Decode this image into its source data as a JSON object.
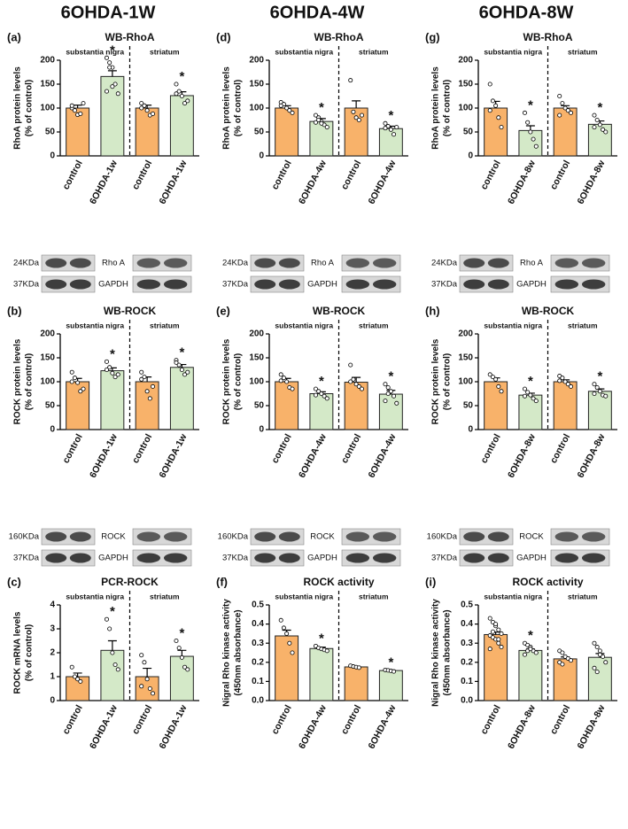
{
  "columns": [
    "6OHDA-1W",
    "6OHDA-4W",
    "6OHDA-8W"
  ],
  "chart_data": [
    {
      "type": "bar",
      "panel": "(a)",
      "title": "WB-RhoA",
      "ylabel": [
        "RhoA protein levels",
        "(% of control)"
      ],
      "groups": [
        "substantia nigra",
        "striatum"
      ],
      "categories": [
        "control",
        "6OHDA-1w",
        "control",
        "6OHDA-1w"
      ],
      "colors": [
        "#f8b26a",
        "#d4e9c8"
      ],
      "ylim": [
        0,
        200
      ],
      "yticks": [
        0,
        50,
        100,
        150,
        200
      ],
      "values": [
        100,
        166,
        100,
        126
      ],
      "errors": [
        6,
        12,
        6,
        8
      ],
      "points": [
        [
          100,
          95,
          86,
          88,
          110,
          105
        ],
        [
          205,
          195,
          185,
          150,
          130,
          135,
          185,
          145
        ],
        [
          110,
          105,
          95,
          85,
          88,
          100
        ],
        [
          150,
          135,
          125,
          110,
          115,
          130
        ]
      ],
      "annotations": [
        {
          "index": 1,
          "text": "*"
        },
        {
          "index": 3,
          "text": "*"
        }
      ]
    },
    {
      "type": "bar",
      "panel": "(b)",
      "title": "WB-ROCK",
      "ylabel": [
        "ROCK protein levels",
        "(% of control)"
      ],
      "groups": [
        "substantia nigra",
        "striatum"
      ],
      "categories": [
        "control",
        "6OHDA-1w",
        "control",
        "6OHDA-1w"
      ],
      "colors": [
        "#f8b26a",
        "#d4e9c8"
      ],
      "ylim": [
        0,
        200
      ],
      "yticks": [
        0,
        50,
        100,
        150,
        200
      ],
      "values": [
        100,
        123,
        100,
        130
      ],
      "errors": [
        7,
        6,
        10,
        6
      ],
      "points": [
        [
          120,
          108,
          98,
          80,
          85,
          100
        ],
        [
          142,
          130,
          118,
          110,
          115,
          125
        ],
        [
          120,
          110,
          80,
          65,
          90,
          105
        ],
        [
          145,
          135,
          125,
          115,
          120,
          140
        ]
      ],
      "annotations": [
        {
          "index": 1,
          "text": "*"
        },
        {
          "index": 3,
          "text": "*"
        }
      ]
    },
    {
      "type": "bar",
      "panel": "(c)",
      "title": "PCR-ROCK",
      "ylabel": [
        "ROCK mRNA levels",
        "(% of control)"
      ],
      "groups": [
        "substantia nigra",
        "striatum"
      ],
      "categories": [
        "control",
        "6OHDA-1w",
        "control",
        "6OHDA-1w"
      ],
      "colors": [
        "#f8b26a",
        "#d4e9c8"
      ],
      "ylim": [
        0,
        4
      ],
      "yticks": [
        0,
        1,
        2,
        3,
        4
      ],
      "values": [
        1,
        2.1,
        1,
        1.85
      ],
      "errors": [
        0.15,
        0.4,
        0.35,
        0.25
      ],
      "points": [
        [
          1.4,
          1,
          0.9,
          0.8
        ],
        [
          3.4,
          3,
          2,
          1.5,
          1.3
        ],
        [
          1.9,
          1.6,
          0.9,
          0.5,
          0.3,
          0.6
        ],
        [
          2.5,
          2.2,
          1.8,
          1.4,
          1.3
        ]
      ],
      "annotations": [
        {
          "index": 1,
          "text": "*"
        },
        {
          "index": 3,
          "text": "*"
        }
      ]
    },
    {
      "type": "bar",
      "panel": "(d)",
      "title": "WB-RhoA",
      "ylabel": [
        "RhoA protein levels",
        "(% of control)"
      ],
      "groups": [
        "substantia nigra",
        "striatum"
      ],
      "categories": [
        "control",
        "6OHDA-4w",
        "control",
        "6OHDA-4w"
      ],
      "colors": [
        "#f8b26a",
        "#d4e9c8"
      ],
      "ylim": [
        0,
        200
      ],
      "yticks": [
        0,
        50,
        100,
        150,
        200
      ],
      "values": [
        100,
        72,
        100,
        57
      ],
      "errors": [
        5,
        6,
        15,
        5
      ],
      "points": [
        [
          112,
          108,
          100,
          95,
          90,
          105
        ],
        [
          85,
          80,
          72,
          65,
          60,
          70,
          75,
          68
        ],
        [
          158,
          92,
          80,
          75,
          85
        ],
        [
          68,
          62,
          55,
          45,
          60,
          58
        ]
      ],
      "annotations": [
        {
          "index": 1,
          "text": "*"
        },
        {
          "index": 3,
          "text": "*"
        }
      ]
    },
    {
      "type": "bar",
      "panel": "(e)",
      "title": "WB-ROCK",
      "ylabel": [
        "ROCK protein levels",
        "(% of control)"
      ],
      "groups": [
        "substantia nigra",
        "striatum"
      ],
      "categories": [
        "control",
        "6OHDA-4w",
        "control",
        "6OHDA-4w"
      ],
      "colors": [
        "#f8b26a",
        "#d4e9c8"
      ],
      "ylim": [
        0,
        200
      ],
      "yticks": [
        0,
        50,
        100,
        150,
        200
      ],
      "values": [
        100,
        75,
        99,
        74
      ],
      "errors": [
        7,
        4,
        10,
        8
      ],
      "points": [
        [
          115,
          108,
          100,
          88,
          85,
          102
        ],
        [
          85,
          80,
          75,
          70,
          65,
          72
        ],
        [
          135,
          105,
          95,
          90,
          85,
          100
        ],
        [
          95,
          88,
          80,
          70,
          55,
          60,
          75
        ]
      ],
      "annotations": [
        {
          "index": 1,
          "text": "*"
        },
        {
          "index": 3,
          "text": "*"
        }
      ]
    },
    {
      "type": "bar",
      "panel": "(f)",
      "title": "ROCK activity",
      "ylabel": [
        "Nigral Rho kinase activity",
        "(450nm absorbance)"
      ],
      "groups": [
        "substantia nigra",
        "striatum"
      ],
      "categories": [
        "control",
        "6OHDA-4w",
        "control",
        "6OHDA-4w"
      ],
      "colors": [
        "#f8b26a",
        "#d4e9c8"
      ],
      "ylim": [
        0,
        0.5
      ],
      "yticks": [
        {
          "value": 0,
          "label": "0.0"
        },
        0.1,
        0.2,
        0.3,
        0.4,
        0.5
      ],
      "values": [
        0.338,
        0.272,
        0.176,
        0.157
      ],
      "errors": [
        0.03,
        0.007,
        0.003,
        0.003
      ],
      "points": [
        [
          0.42,
          0.38,
          0.35,
          0.3,
          0.25
        ],
        [
          0.285,
          0.275,
          0.27,
          0.265,
          0.26
        ],
        [
          0.182,
          0.178,
          0.175,
          0.172
        ],
        [
          0.16,
          0.158,
          0.155,
          0.152
        ]
      ],
      "annotations": [
        {
          "index": 1,
          "text": "*"
        },
        {
          "index": 3,
          "text": "*"
        }
      ]
    },
    {
      "type": "bar",
      "panel": "(g)",
      "title": "WB-RhoA",
      "ylabel": [
        "RhoA protein levels",
        "(% of control)"
      ],
      "groups": [
        "substantia nigra",
        "striatum"
      ],
      "categories": [
        "control",
        "6OHDA-8w",
        "control",
        "6OHDA-8w"
      ],
      "colors": [
        "#f8b26a",
        "#d4e9c8"
      ],
      "ylim": [
        0,
        200
      ],
      "yticks": [
        0,
        50,
        100,
        150,
        200
      ],
      "values": [
        100,
        53,
        100,
        66
      ],
      "errors": [
        14,
        10,
        5,
        7
      ],
      "points": [
        [
          150,
          115,
          105,
          80,
          60,
          95
        ],
        [
          90,
          70,
          50,
          35,
          20
        ],
        [
          125,
          110,
          100,
          95,
          90,
          85
        ],
        [
          85,
          75,
          65,
          55,
          50,
          60
        ]
      ],
      "annotations": [
        {
          "index": 1,
          "text": "*"
        },
        {
          "index": 3,
          "text": "*"
        }
      ]
    },
    {
      "type": "bar",
      "panel": "(h)",
      "title": "WB-ROCK",
      "ylabel": [
        "ROCK protein levels",
        "(% of control)"
      ],
      "groups": [
        "substantia nigra",
        "striatum"
      ],
      "categories": [
        "control",
        "6OHDA-8w",
        "control",
        "6OHDA-8w"
      ],
      "colors": [
        "#f8b26a",
        "#d4e9c8"
      ],
      "ylim": [
        0,
        200
      ],
      "yticks": [
        0,
        50,
        100,
        150,
        200
      ],
      "values": [
        100,
        72,
        100,
        80
      ],
      "errors": [
        8,
        4,
        4,
        5
      ],
      "points": [
        [
          115,
          110,
          105,
          90,
          80
        ],
        [
          85,
          78,
          72,
          65,
          60,
          70
        ],
        [
          112,
          108,
          100,
          95,
          90,
          102
        ],
        [
          95,
          88,
          80,
          72,
          70,
          75
        ]
      ],
      "annotations": [
        {
          "index": 1,
          "text": "*"
        },
        {
          "index": 3,
          "text": "*"
        }
      ]
    },
    {
      "type": "bar",
      "panel": "(i)",
      "title": "ROCK activity",
      "ylabel": [
        "Nigral Rho kinase activity",
        "(450nm absorbance)"
      ],
      "groups": [
        "substantia nigra",
        "striatum"
      ],
      "categories": [
        "control",
        "6OHDA-8w",
        "control",
        "6OHDA-8w"
      ],
      "colors": [
        "#f8b26a",
        "#d4e9c8"
      ],
      "ylim": [
        0,
        0.5
      ],
      "yticks": [
        {
          "value": 0,
          "label": "0.0"
        },
        0.1,
        0.2,
        0.3,
        0.4,
        0.5
      ],
      "values": [
        0.345,
        0.262,
        0.218,
        0.226
      ],
      "errors": [
        0.013,
        0.008,
        0.01,
        0.02
      ],
      "points": [
        [
          0.43,
          0.41,
          0.39,
          0.37,
          0.35,
          0.34,
          0.33,
          0.32,
          0.3,
          0.28,
          0.27,
          0.36,
          0.4,
          0.32
        ],
        [
          0.3,
          0.29,
          0.28,
          0.26,
          0.25,
          0.24,
          0.26,
          0.27
        ],
        [
          0.26,
          0.25,
          0.23,
          0.22,
          0.21,
          0.2,
          0.19
        ],
        [
          0.3,
          0.28,
          0.26,
          0.23,
          0.2,
          0.17,
          0.15,
          0.24
        ]
      ],
      "annotations": [
        {
          "index": 1,
          "text": "*"
        }
      ]
    }
  ],
  "blots": [
    [
      [
        [
          "24KDa",
          "Rho A"
        ],
        [
          "37KDa",
          "GAPDH"
        ]
      ],
      [
        [
          "24KDa",
          "Rho A"
        ],
        [
          "37KDa",
          "GAPDH"
        ]
      ],
      [
        [
          "24KDa",
          "Rho A"
        ],
        [
          "37KDa",
          "GAPDH"
        ]
      ]
    ],
    [
      [
        [
          "160KDa",
          "ROCK"
        ],
        [
          "37KDa",
          "GAPDH"
        ]
      ],
      [
        [
          "160KDa",
          "ROCK"
        ],
        [
          "37KDa",
          "GAPDH"
        ]
      ],
      [
        [
          "160KDa",
          "ROCK"
        ],
        [
          "37KDa",
          "GAPDH"
        ]
      ]
    ]
  ]
}
